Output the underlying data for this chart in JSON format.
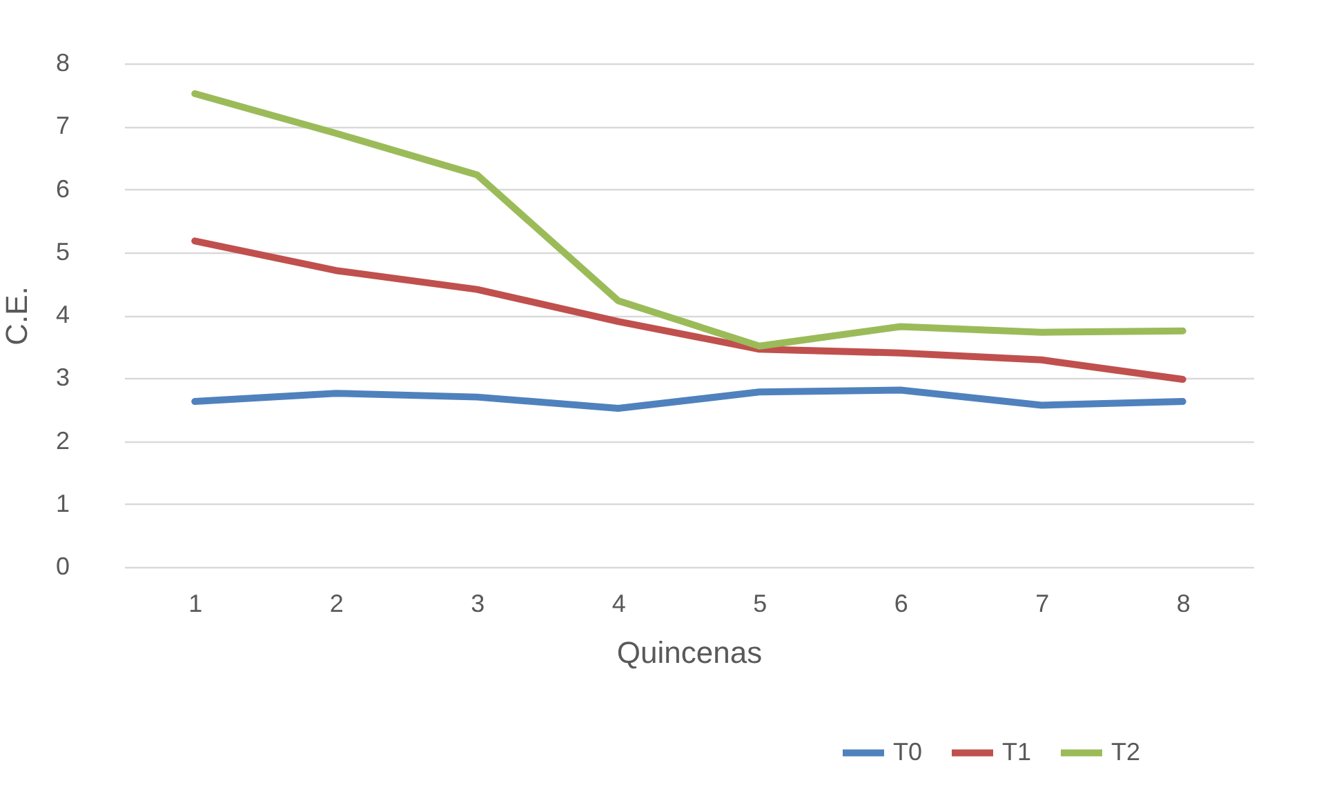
{
  "chart_data": {
    "type": "line",
    "xlabel": "Quincenas",
    "ylabel": "C.E.",
    "categories": [
      "1",
      "2",
      "3",
      "4",
      "5",
      "6",
      "7",
      "8"
    ],
    "series": [
      {
        "name": "T0",
        "color": "#4f81bd",
        "values": [
          2.63,
          2.76,
          2.7,
          2.52,
          2.78,
          2.81,
          2.57,
          2.63
        ]
      },
      {
        "name": "T1",
        "color": "#c0504d",
        "values": [
          5.18,
          4.71,
          4.41,
          3.9,
          3.46,
          3.4,
          3.29,
          2.98
        ]
      },
      {
        "name": "T2",
        "color": "#9bbb59",
        "values": [
          7.52,
          6.89,
          6.23,
          4.23,
          3.51,
          3.82,
          3.73,
          3.75
        ]
      }
    ],
    "ylim": [
      0,
      8
    ],
    "yticks": [
      0,
      1,
      2,
      3,
      4,
      5,
      6,
      7,
      8
    ],
    "grid": "y",
    "legend": "bottom right",
    "marker": "none",
    "line_style": "solid"
  }
}
